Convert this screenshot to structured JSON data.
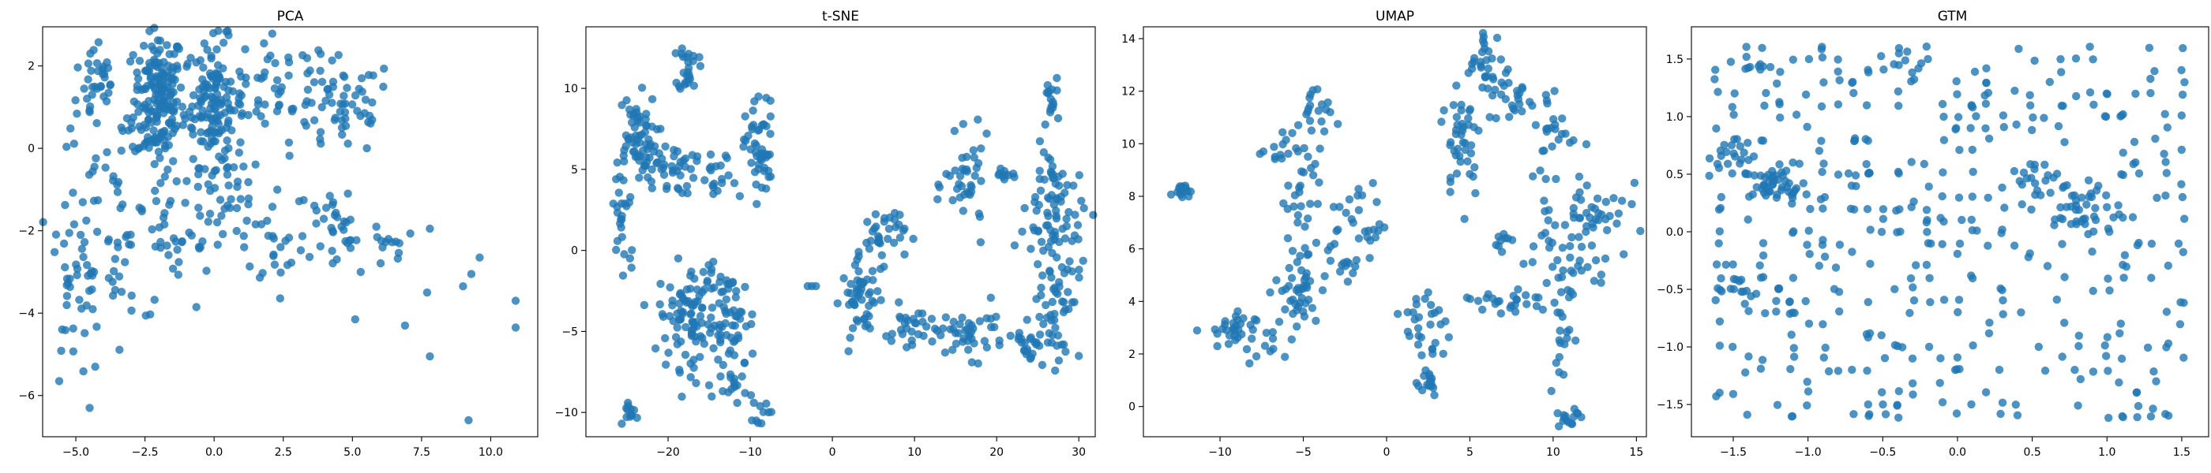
{
  "figure": {
    "marker_color": "#1f77b4",
    "marker_alpha": 0.8
  },
  "chart_data": [
    {
      "type": "scatter",
      "title": "PCA",
      "xlim": [
        -6.2,
        11.7
      ],
      "ylim": [
        -7.0,
        2.95
      ],
      "xticks": [
        -5.0,
        -2.5,
        0.0,
        2.5,
        5.0,
        7.5,
        10.0
      ],
      "xtick_labels": [
        "−5.0",
        "−2.5",
        "0.0",
        "2.5",
        "5.0",
        "7.5",
        "10.0"
      ],
      "yticks": [
        -6,
        -4,
        -2,
        0,
        2
      ],
      "ytick_labels": [
        "−6",
        "−4",
        "−2",
        "0",
        "2"
      ],
      "clusters": [
        {
          "c": [
            -2.0,
            1.2
          ],
          "s": [
            0.45,
            0.85
          ],
          "n": 170
        },
        {
          "c": [
            0.0,
            1.1
          ],
          "s": [
            0.55,
            0.75
          ],
          "n": 150
        },
        {
          "c": [
            -4.3,
            1.5
          ],
          "s": [
            0.45,
            0.55
          ],
          "n": 35
        },
        {
          "c": [
            4.7,
            1.0
          ],
          "s": [
            0.9,
            0.6
          ],
          "n": 55
        },
        {
          "c": [
            2.5,
            1.3
          ],
          "s": [
            0.9,
            0.7
          ],
          "n": 45
        },
        {
          "c": [
            -3.5,
            -1.5
          ],
          "s": [
            1.2,
            1.4
          ],
          "n": 80
        },
        {
          "c": [
            -5.0,
            -3.4
          ],
          "s": [
            0.45,
            0.9
          ],
          "n": 30
        },
        {
          "c": [
            0.5,
            -1.6
          ],
          "s": [
            1.1,
            0.7
          ],
          "n": 45
        },
        {
          "c": [
            4.5,
            -1.9
          ],
          "s": [
            0.8,
            0.6
          ],
          "n": 35
        },
        {
          "c": [
            2.5,
            -2.5
          ],
          "s": [
            0.6,
            0.4
          ],
          "n": 15
        },
        {
          "c": [
            6.5,
            -2.3
          ],
          "s": [
            0.4,
            0.3
          ],
          "n": 10
        },
        {
          "c": [
            -1.5,
            -2.4
          ],
          "s": [
            0.8,
            0.6
          ],
          "n": 25
        }
      ],
      "points": [
        [
          -5.6,
          -5.65
        ],
        [
          -4.5,
          -6.3
        ],
        [
          -4.3,
          -5.3
        ],
        [
          5.1,
          -4.15
        ],
        [
          6.9,
          -4.3
        ],
        [
          7.8,
          -5.05
        ],
        [
          9.2,
          -6.6
        ],
        [
          9.6,
          -2.65
        ],
        [
          9.3,
          -3.05
        ],
        [
          9.0,
          -3.35
        ],
        [
          10.9,
          -3.7
        ],
        [
          10.9,
          -4.35
        ],
        [
          7.8,
          -1.95
        ],
        [
          7.7,
          -3.5
        ],
        [
          5.3,
          -3.0
        ]
      ]
    },
    {
      "type": "scatter",
      "title": "t-SNE",
      "xlim": [
        -30,
        32
      ],
      "ylim": [
        -11.5,
        13.8
      ],
      "xticks": [
        -20,
        -10,
        0,
        10,
        20,
        30
      ],
      "xtick_labels": [
        "−20",
        "−10",
        "0",
        "10",
        "20",
        "30"
      ],
      "yticks": [
        -10,
        -5,
        0,
        5,
        10
      ],
      "ytick_labels": [
        "−10",
        "−5",
        "0",
        "5",
        "10"
      ],
      "clusters": [
        {
          "c": [
            -17.5,
            11.3
          ],
          "s": [
            0.6,
            0.8
          ],
          "n": 25
        },
        {
          "c": [
            -24.0,
            7.0
          ],
          "s": [
            1.3,
            1.3
          ],
          "n": 60
        },
        {
          "c": [
            -20.0,
            5.0
          ],
          "s": [
            1.6,
            0.8
          ],
          "n": 40
        },
        {
          "c": [
            -8.8,
            6.2
          ],
          "s": [
            0.9,
            1.5
          ],
          "n": 50
        },
        {
          "c": [
            -14.0,
            4.2
          ],
          "s": [
            1.2,
            0.9
          ],
          "n": 20
        },
        {
          "c": [
            -25.5,
            2.0
          ],
          "s": [
            0.8,
            2.2
          ],
          "n": 25
        },
        {
          "c": [
            -17.5,
            -4.0
          ],
          "s": [
            1.8,
            1.6
          ],
          "n": 90
        },
        {
          "c": [
            -12.5,
            -4.5
          ],
          "s": [
            1.6,
            1.6
          ],
          "n": 60
        },
        {
          "c": [
            -24.5,
            -10.0
          ],
          "s": [
            0.4,
            0.4
          ],
          "n": 12
        },
        {
          "c": [
            -12.0,
            -8.4
          ],
          "s": [
            0.8,
            0.5
          ],
          "n": 15
        },
        {
          "c": [
            -8.5,
            -9.8
          ],
          "s": [
            0.6,
            0.4
          ],
          "n": 10
        },
        {
          "c": [
            3.5,
            -3.0
          ],
          "s": [
            1.2,
            1.1
          ],
          "n": 50
        },
        {
          "c": [
            6.0,
            1.0
          ],
          "s": [
            1.4,
            0.9
          ],
          "n": 35
        },
        {
          "c": [
            10.5,
            -5.0
          ],
          "s": [
            2.2,
            0.8
          ],
          "n": 35
        },
        {
          "c": [
            17.0,
            -5.0
          ],
          "s": [
            2.0,
            0.8
          ],
          "n": 35
        },
        {
          "c": [
            16.5,
            4.0
          ],
          "s": [
            1.4,
            1.4
          ],
          "n": 40
        },
        {
          "c": [
            26.5,
            9.0
          ],
          "s": [
            0.5,
            0.9
          ],
          "n": 15
        },
        {
          "c": [
            27.0,
            3.0
          ],
          "s": [
            1.6,
            2.0
          ],
          "n": 60
        },
        {
          "c": [
            27.0,
            -2.5
          ],
          "s": [
            1.6,
            2.2
          ],
          "n": 70
        },
        {
          "c": [
            24.0,
            -5.5
          ],
          "s": [
            0.8,
            0.8
          ],
          "n": 20
        },
        {
          "c": [
            21.0,
            4.6
          ],
          "s": [
            0.9,
            0.3
          ],
          "n": 10
        }
      ],
      "points": [
        [
          -2.5,
          -2.2
        ],
        [
          -3.0,
          -2.2
        ],
        [
          -2.0,
          -2.2
        ],
        [
          -9.5,
          9.2
        ],
        [
          -9.0,
          9.5
        ]
      ]
    },
    {
      "type": "scatter",
      "title": "UMAP",
      "xlim": [
        -14.6,
        15.6
      ],
      "ylim": [
        -1.15,
        14.45
      ],
      "xticks": [
        -10,
        -5,
        0,
        5,
        10,
        15
      ],
      "xtick_labels": [
        "−10",
        "−5",
        "0",
        "5",
        "10",
        "15"
      ],
      "yticks": [
        0,
        2,
        4,
        6,
        8,
        10,
        12,
        14
      ],
      "ytick_labels": [
        "0",
        "2",
        "4",
        "6",
        "8",
        "10",
        "12",
        "14"
      ],
      "clusters": [
        {
          "c": [
            -12.3,
            8.25
          ],
          "s": [
            0.25,
            0.12
          ],
          "n": 18
        },
        {
          "c": [
            -9.5,
            2.9
          ],
          "s": [
            0.8,
            0.35
          ],
          "n": 30
        },
        {
          "c": [
            -7.5,
            2.2
          ],
          "s": [
            0.5,
            0.3
          ],
          "n": 10
        },
        {
          "c": [
            -4.5,
            11.0
          ],
          "s": [
            0.6,
            0.6
          ],
          "n": 20
        },
        {
          "c": [
            -5.0,
            8.0
          ],
          "s": [
            0.5,
            0.9
          ],
          "n": 25
        },
        {
          "c": [
            -5.3,
            4.5
          ],
          "s": [
            0.7,
            0.9
          ],
          "n": 45
        },
        {
          "c": [
            -3.0,
            5.5
          ],
          "s": [
            0.5,
            0.4
          ],
          "n": 12
        },
        {
          "c": [
            -1.7,
            7.0
          ],
          "s": [
            0.9,
            0.8
          ],
          "n": 30
        },
        {
          "c": [
            -6.5,
            9.8
          ],
          "s": [
            0.6,
            0.3
          ],
          "n": 12
        },
        {
          "c": [
            2.5,
            3.0
          ],
          "s": [
            0.7,
            1.0
          ],
          "n": 30
        },
        {
          "c": [
            2.3,
            1.0
          ],
          "s": [
            0.5,
            0.3
          ],
          "n": 15
        },
        {
          "c": [
            4.5,
            10.2
          ],
          "s": [
            0.6,
            1.2
          ],
          "n": 40
        },
        {
          "c": [
            6.0,
            13.0
          ],
          "s": [
            0.6,
            0.8
          ],
          "n": 30
        },
        {
          "c": [
            7.5,
            11.8
          ],
          "s": [
            0.7,
            0.5
          ],
          "n": 25
        },
        {
          "c": [
            10.0,
            10.3
          ],
          "s": [
            0.7,
            1.0
          ],
          "n": 25
        },
        {
          "c": [
            12.5,
            7.5
          ],
          "s": [
            1.0,
            1.0
          ],
          "n": 40
        },
        {
          "c": [
            11.0,
            5.2
          ],
          "s": [
            1.2,
            0.6
          ],
          "n": 30
        },
        {
          "c": [
            7.0,
            4.0
          ],
          "s": [
            1.5,
            0.3
          ],
          "n": 25
        },
        {
          "c": [
            10.5,
            2.5
          ],
          "s": [
            0.4,
            0.8
          ],
          "n": 15
        },
        {
          "c": [
            10.9,
            -0.4
          ],
          "s": [
            0.3,
            0.2
          ],
          "n": 15
        },
        {
          "c": [
            6.8,
            6.3
          ],
          "s": [
            0.3,
            0.3
          ],
          "n": 8
        },
        {
          "c": [
            9.5,
            7.0
          ],
          "s": [
            0.7,
            0.5
          ],
          "n": 12
        }
      ],
      "points": []
    },
    {
      "type": "scatter",
      "title": "GTM",
      "xlim": [
        -1.78,
        1.68
      ],
      "ylim": [
        -1.78,
        1.78
      ],
      "xticks": [
        -1.5,
        -1.0,
        -0.5,
        0.0,
        0.5,
        1.0,
        1.5
      ],
      "xtick_labels": [
        "−1.5",
        "−1.0",
        "−0.5",
        "0.0",
        "0.5",
        "1.0",
        "1.5"
      ],
      "yticks": [
        -1.5,
        -1.0,
        -0.5,
        0.0,
        0.5,
        1.0,
        1.5
      ],
      "ytick_labels": [
        "−1.5",
        "−1.0",
        "−0.5",
        "0.0",
        "0.5",
        "1.0",
        "1.5"
      ],
      "grid_points": {
        "x_start": -1.6,
        "x_step": 0.1,
        "x_count": 32,
        "y_start": -1.6,
        "y_step": 0.1,
        "y_count": 33,
        "n": 420,
        "jitter": 0.012
      },
      "clusters": [
        {
          "c": [
            -1.2,
            0.4
          ],
          "s": [
            0.09,
            0.07
          ],
          "n": 45
        },
        {
          "c": [
            -1.5,
            0.65
          ],
          "s": [
            0.08,
            0.1
          ],
          "n": 20
        },
        {
          "c": [
            0.8,
            0.2
          ],
          "s": [
            0.15,
            0.12
          ],
          "n": 40
        },
        {
          "c": [
            0.5,
            0.5
          ],
          "s": [
            0.08,
            0.08
          ],
          "n": 15
        },
        {
          "c": [
            -1.45,
            -0.5
          ],
          "s": [
            0.05,
            0.06
          ],
          "n": 10
        },
        {
          "c": [
            -1.4,
            1.45
          ],
          "s": [
            0.08,
            0.04
          ],
          "n": 8
        },
        {
          "c": [
            -0.3,
            1.45
          ],
          "s": [
            0.06,
            0.05
          ],
          "n": 8
        }
      ],
      "points": []
    }
  ]
}
